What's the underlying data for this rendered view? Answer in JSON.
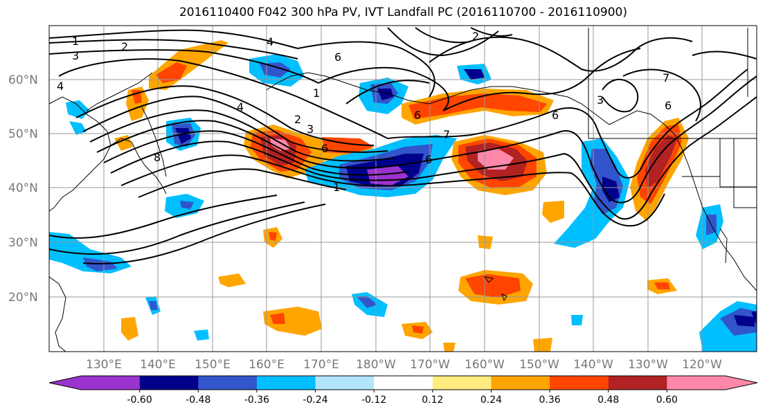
{
  "title": "2016110400 F042 300 hPa PV, IVT Landfall PC (2016110700 - 2016110900)",
  "lat_labels": [
    "60°N",
    "50°N",
    "40°N",
    "30°N",
    "20°N"
  ],
  "lon_labels": [
    "130°E",
    "140°E",
    "150°E",
    "160°E",
    "170°E",
    "180°W",
    "170°W",
    "160°W",
    "150°W",
    "140°W",
    "130°W",
    "120°W"
  ],
  "contour_labels": [
    "1",
    "2",
    "3",
    "4",
    "6",
    "7",
    "8"
  ],
  "colorbar": {
    "colors": [
      "#9933cc",
      "#00008b",
      "#3355cc",
      "#00bfff",
      "#b3e5fc",
      "#ffffff",
      "#ffeb80",
      "#ffa500",
      "#ff4500",
      "#b22222",
      "#ff88aa"
    ],
    "tick_labels": [
      "-0.60",
      "-0.48",
      "-0.36",
      "-0.24",
      "-0.12",
      "0.12",
      "0.24",
      "0.36",
      "0.48",
      "0.60"
    ]
  }
}
